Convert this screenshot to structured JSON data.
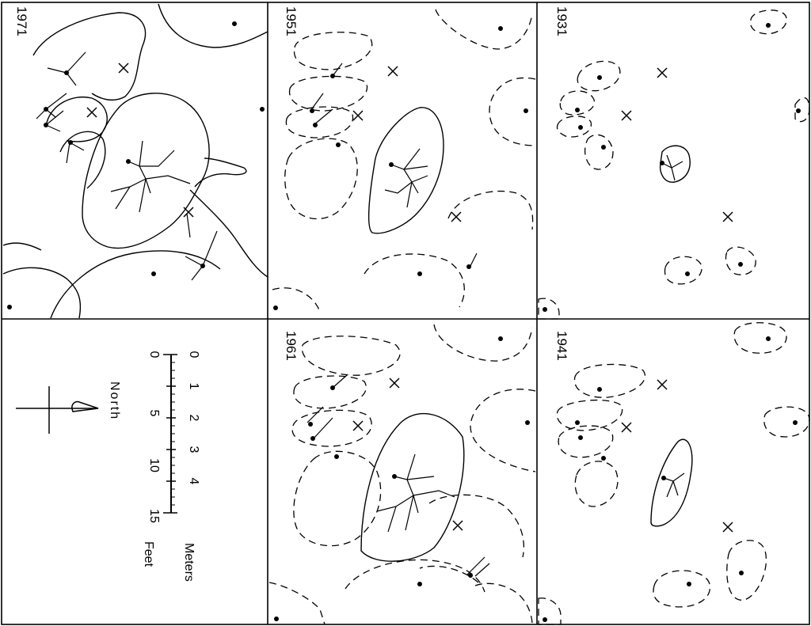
{
  "panels": {
    "p1931": {
      "year": "1931"
    },
    "p1941": {
      "year": "1941"
    },
    "p1951": {
      "year": "1951"
    },
    "p1961": {
      "year": "1961"
    },
    "p1971": {
      "year": "1971"
    }
  },
  "scale_bar": {
    "meters_label": "Meters",
    "feet_label": "Feet",
    "meter_ticks": [
      "0",
      "1",
      "2",
      "3",
      "4"
    ],
    "feet_ticks": [
      "0",
      "5",
      "10",
      "15"
    ]
  },
  "north_arrow": {
    "label": "North"
  }
}
